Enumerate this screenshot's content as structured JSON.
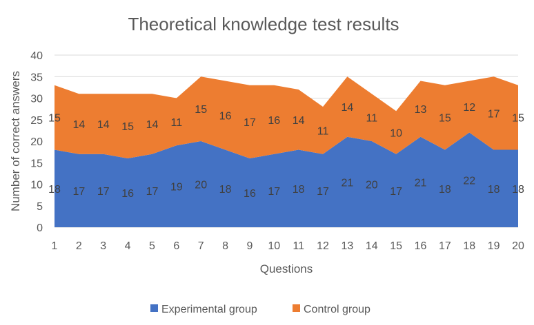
{
  "chart_data": {
    "type": "area",
    "stacked": true,
    "title": "Theoretical knowledge test results",
    "xlabel": "Questions",
    "ylabel": "Number of correct answers",
    "ylim": [
      0,
      40
    ],
    "yticks": [
      0,
      5,
      10,
      15,
      20,
      25,
      30,
      35,
      40
    ],
    "grid": true,
    "legend_position": "bottom",
    "categories": [
      "1",
      "2",
      "3",
      "4",
      "5",
      "6",
      "7",
      "8",
      "9",
      "10",
      "11",
      "12",
      "13",
      "14",
      "15",
      "16",
      "17",
      "18",
      "19",
      "20"
    ],
    "series": [
      {
        "name": "Experimental group",
        "color": "#4472C4",
        "values": [
          18,
          17,
          17,
          16,
          17,
          19,
          20,
          18,
          16,
          17,
          18,
          17,
          21,
          20,
          17,
          21,
          18,
          22,
          18,
          18
        ]
      },
      {
        "name": "Control group",
        "color": "#ED7D31",
        "values": [
          15,
          14,
          14,
          15,
          14,
          11,
          15,
          16,
          17,
          16,
          14,
          11,
          14,
          11,
          10,
          13,
          15,
          12,
          17,
          15
        ]
      }
    ]
  }
}
